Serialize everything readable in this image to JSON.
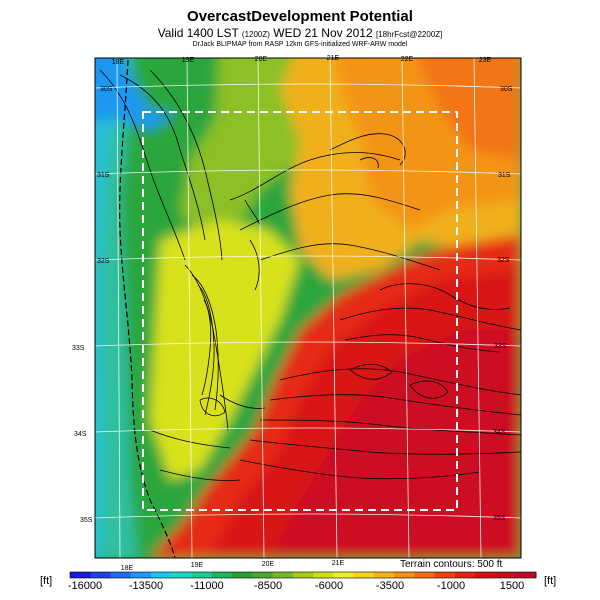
{
  "header": {
    "title": "OvercastDevelopment Potential",
    "subtitle_main": "Valid 1400 LST",
    "subtitle_code": "(1200Z)",
    "subtitle_date": "WED 21 Nov 2012",
    "subtitle_tag": "[18hrFcst@2200Z]",
    "credit": "DrJack BLIPMAP from RASP 12km GFS-initialized WRF-ARW model"
  },
  "map": {
    "top_lon_labels": [
      "18E",
      "19E",
      "20E",
      "21E",
      "22E",
      "23E"
    ],
    "bottom_lon_labels": [
      "18E",
      "19E",
      "20E",
      "21E"
    ],
    "left_lat_labels": [
      "30S",
      "31S",
      "32S",
      "33S",
      "34S",
      "35S"
    ],
    "right_lat_labels": [
      "30S",
      "31S",
      "32S",
      "33S",
      "34S",
      "35S"
    ],
    "terrain_note": "Terrain contours: 500 ft"
  },
  "colorbar": {
    "unit_left": "[ft]",
    "unit_right": "[ft]",
    "labels": [
      "-16000",
      "-13500",
      "-11000",
      "-8500",
      "-6000",
      "-3500",
      "-1000",
      "1500"
    ],
    "colors": [
      "#1a1ad0",
      "#1e40e6",
      "#1e6cf0",
      "#1e98f4",
      "#1ec4ee",
      "#1ed6c4",
      "#1ec890",
      "#1eb45c",
      "#26a238",
      "#4aa82c",
      "#78b828",
      "#a8c81e",
      "#cede1e",
      "#eeee24",
      "#f4d21e",
      "#f4b41a",
      "#f49018",
      "#f26a16",
      "#ec4414",
      "#e02412",
      "#d41010",
      "#c60e1e",
      "#b80c2a"
    ]
  }
}
